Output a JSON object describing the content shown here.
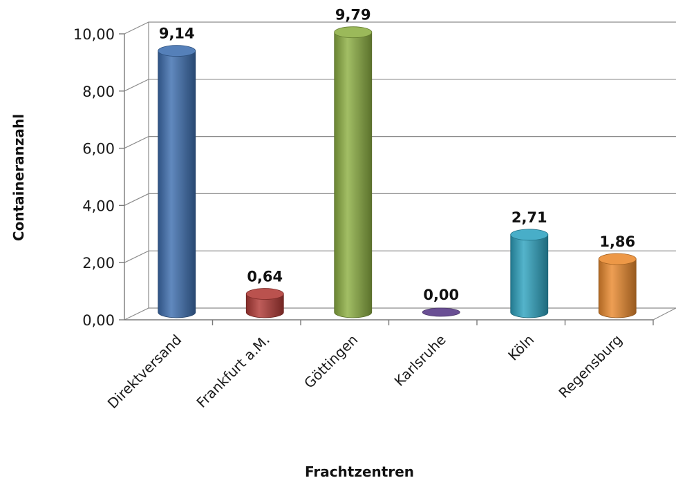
{
  "chart_data": {
    "type": "bar",
    "style": "3d-cylinder",
    "title": "",
    "xlabel": "Frachtzentren",
    "ylabel": "Containeranzahl",
    "categories": [
      "Direktversand",
      "Frankfurt a.M.",
      "Göttingen",
      "Karlsruhe",
      "Köln",
      "Regensburg"
    ],
    "values": [
      9.14,
      0.64,
      9.79,
      0.0,
      2.71,
      1.86
    ],
    "value_labels": [
      "9,14",
      "0,64",
      "9,79",
      "0,00",
      "2,71",
      "1,86"
    ],
    "colors": [
      "#3e6fb0",
      "#b13a36",
      "#8db043",
      "#6a4f94",
      "#2fa3c0",
      "#ea8a2e"
    ],
    "ylim": [
      0,
      10
    ],
    "yticks": [
      0,
      2,
      4,
      6,
      8,
      10
    ],
    "ytick_labels": [
      "0,00",
      "2,00",
      "4,00",
      "6,00",
      "8,00",
      "10,00"
    ],
    "grid": true,
    "legend": "none"
  }
}
